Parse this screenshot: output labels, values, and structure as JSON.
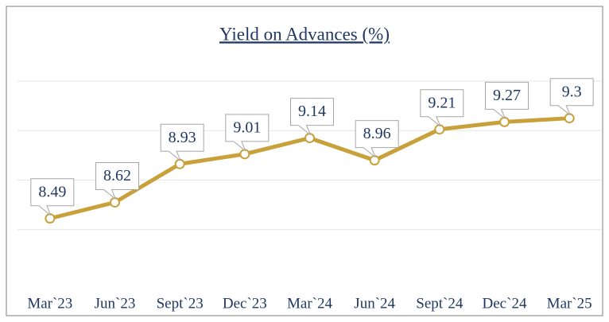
{
  "chart_data": {
    "type": "line",
    "title": "Yield on Advances (%)",
    "categories": [
      "Mar`23",
      "Jun`23",
      "Sept`23",
      "Dec`23",
      "Mar`24",
      "Jun`24",
      "Sept`24",
      "Dec`24",
      "Mar`25"
    ],
    "values": [
      8.49,
      8.62,
      8.93,
      9.01,
      9.14,
      8.96,
      9.21,
      9.27,
      9.3
    ],
    "color": "#c9a13b",
    "ylim": [
      8.0,
      9.6
    ],
    "yticks": [
      8.4,
      8.8,
      9.2,
      9.6
    ],
    "grid": true
  }
}
